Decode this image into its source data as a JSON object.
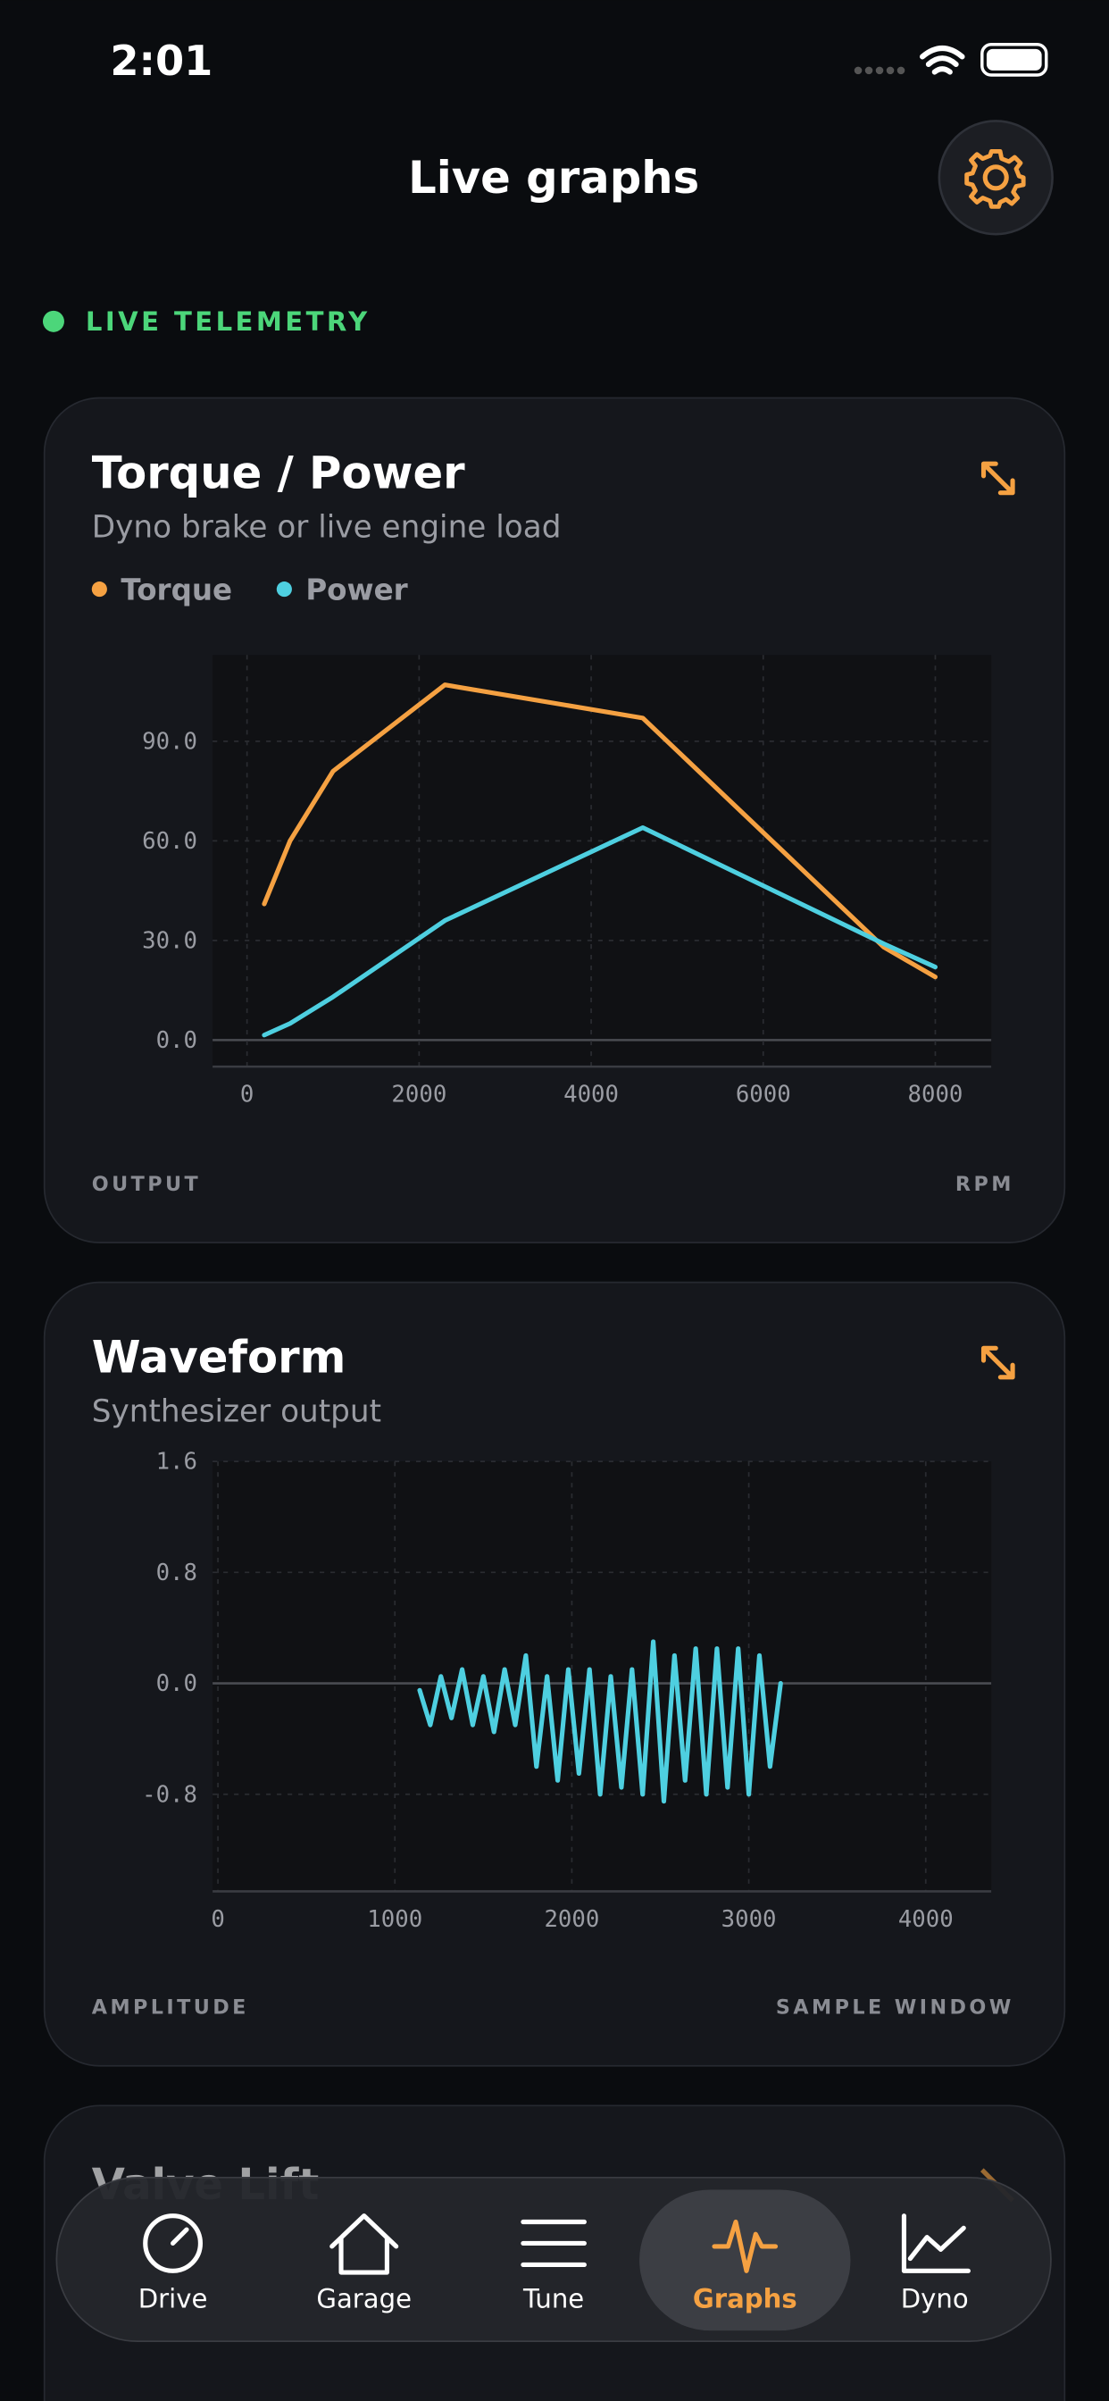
{
  "status_bar": {
    "time": "2:01"
  },
  "header": {
    "title": "Live graphs"
  },
  "live_label": "LIVE TELEMETRY",
  "chart_data": [
    {
      "type": "line",
      "title": "Torque / Power",
      "subtitle": "Dyno brake or live engine load",
      "ylabel": "OUTPUT",
      "xlabel": "RPM",
      "x": [
        200,
        500,
        1000,
        2300,
        4600,
        7400,
        8000
      ],
      "series": [
        {
          "name": "Torque",
          "color": "#f5a142",
          "values": [
            41,
            60,
            81,
            107,
            97,
            28,
            19
          ]
        },
        {
          "name": "Power",
          "color": "#4ecfe0",
          "values": [
            1.5,
            5,
            13,
            36,
            64,
            29,
            22
          ]
        }
      ],
      "xlim": [
        -400,
        8650
      ],
      "ylim": [
        -8,
        116
      ],
      "xticks": [
        0,
        2000,
        4000,
        6000,
        8000
      ],
      "yticks": [
        {
          "value": 0,
          "label": "0.0"
        },
        {
          "value": 30,
          "label": "30.0"
        },
        {
          "value": 60,
          "label": "60.0"
        },
        {
          "value": 90,
          "label": "90.0"
        }
      ],
      "grid": true,
      "legend": true
    },
    {
      "type": "line",
      "title": "Waveform",
      "subtitle": "Synthesizer output",
      "ylabel": "AMPLITUDE",
      "xlabel": "SAMPLE WINDOW",
      "x": [
        1140,
        1200,
        1260,
        1320,
        1380,
        1440,
        1500,
        1560,
        1620,
        1680,
        1740,
        1800,
        1860,
        1920,
        1980,
        2040,
        2100,
        2160,
        2220,
        2280,
        2340,
        2400,
        2460,
        2520,
        2580,
        2640,
        2700,
        2760,
        2820,
        2880,
        2940,
        3000,
        3060,
        3120,
        3180
      ],
      "series": [
        {
          "name": "Waveform",
          "color": "#4ecfe0",
          "values": [
            -0.05,
            -0.3,
            0.05,
            -0.25,
            0.1,
            -0.3,
            0.05,
            -0.35,
            0.1,
            -0.3,
            0.2,
            -0.6,
            0.05,
            -0.7,
            0.1,
            -0.65,
            0.1,
            -0.8,
            0.05,
            -0.75,
            0.1,
            -0.8,
            0.3,
            -0.85,
            0.2,
            -0.7,
            0.25,
            -0.8,
            0.25,
            -0.75,
            0.25,
            -0.8,
            0.2,
            -0.6,
            0.0
          ]
        }
      ],
      "xlim": [
        -30,
        4370
      ],
      "ylim": [
        -1.5,
        1.6
      ],
      "xticks": [
        0,
        1000,
        2000,
        3000,
        4000
      ],
      "yticks": [
        {
          "value": -0.8,
          "label": "-0.8"
        },
        {
          "value": 0,
          "label": "0.0"
        },
        {
          "value": 0.8,
          "label": "0.8"
        },
        {
          "value": 1.6,
          "label": "1.6"
        }
      ],
      "grid": true,
      "legend": false
    }
  ],
  "third_card": {
    "title": "Valve Lift"
  },
  "nav": {
    "items": [
      "Drive",
      "Garage",
      "Tune",
      "Graphs",
      "Dyno"
    ],
    "active": "Graphs"
  }
}
